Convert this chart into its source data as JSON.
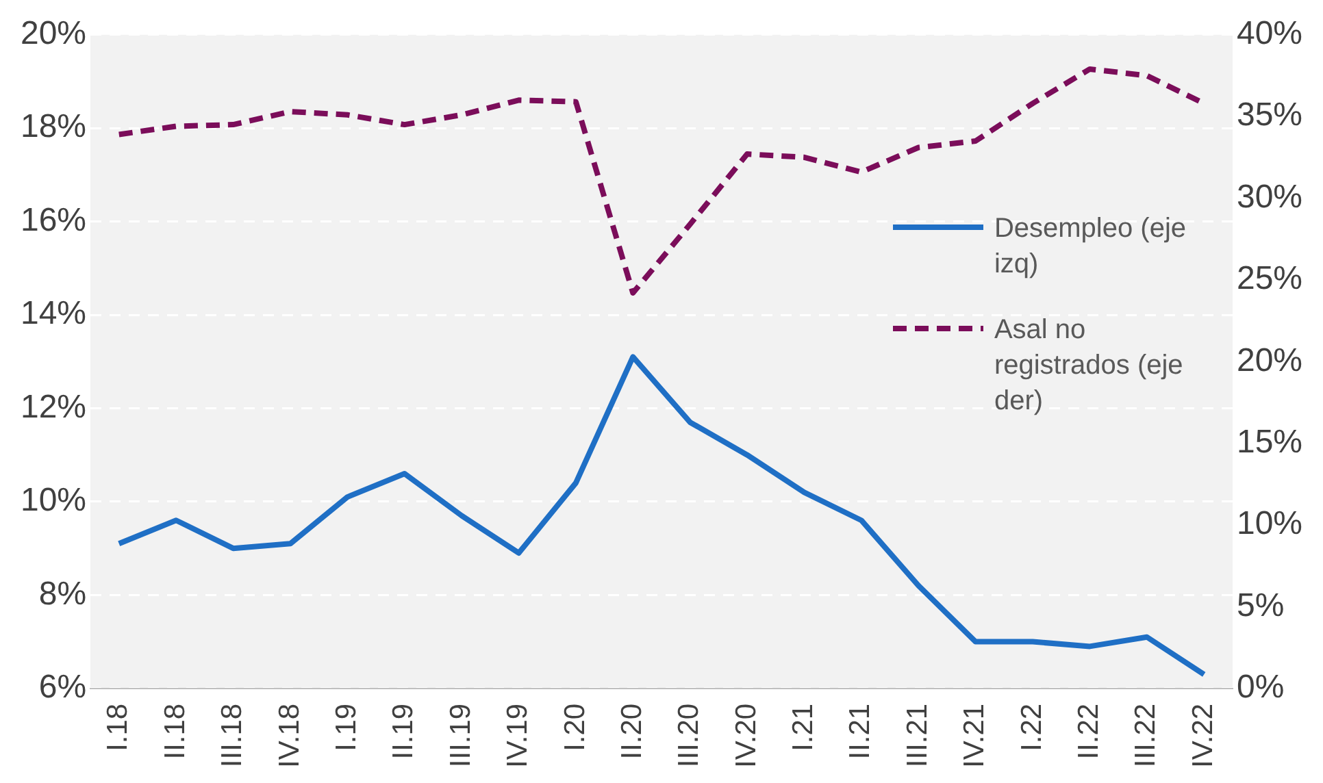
{
  "chart_data": {
    "type": "line",
    "categories": [
      "I.18",
      "II.18",
      "III.18",
      "IV.18",
      "I.19",
      "II.19",
      "III.19",
      "IV.19",
      "I.20",
      "II.20",
      "III.20",
      "IV.20",
      "I.21",
      "II.21",
      "III.21",
      "IV.21",
      "I.22",
      "II.22",
      "III.22",
      "IV.22"
    ],
    "series": [
      {
        "name": "Desempleo (eje izq)",
        "color": "#1f6fc5",
        "line_style": "solid",
        "values": [
          9.1,
          9.6,
          9.0,
          9.1,
          10.1,
          10.6,
          9.7,
          8.9,
          10.4,
          13.1,
          11.7,
          11.0,
          10.2,
          9.6,
          8.2,
          7.0,
          7.0,
          6.9,
          7.1,
          6.3
        ]
      },
      {
        "name": "Asal no registrados (eje der)",
        "color": "#7b0d5a",
        "line_style": "dashed",
        "axis": "y2",
        "values": [
          33.9,
          34.4,
          34.5,
          35.3,
          35.1,
          34.5,
          35.1,
          36.0,
          35.9,
          24.2,
          28.4,
          32.7,
          32.5,
          31.6,
          33.1,
          33.5,
          35.8,
          37.9,
          37.5,
          35.8
        ]
      }
    ],
    "ylim": [
      6,
      20
    ],
    "yticks": [
      {
        "value": 6,
        "label": "6%"
      },
      {
        "value": 8,
        "label": "8%"
      },
      {
        "value": 10,
        "label": "10%"
      },
      {
        "value": 12,
        "label": "12%"
      },
      {
        "value": 14,
        "label": "14%"
      },
      {
        "value": 16,
        "label": "16%"
      },
      {
        "value": 18,
        "label": "18%"
      },
      {
        "value": 20,
        "label": "20%"
      }
    ],
    "y2lim": [
      0,
      40
    ],
    "y2ticks": [
      {
        "value": 0,
        "label": "0%"
      },
      {
        "value": 5,
        "label": "5%"
      },
      {
        "value": 10,
        "label": "10%"
      },
      {
        "value": 15,
        "label": "15%"
      },
      {
        "value": 20,
        "label": "20%"
      },
      {
        "value": 25,
        "label": "25%"
      },
      {
        "value": 30,
        "label": "30%"
      },
      {
        "value": 35,
        "label": "35%"
      },
      {
        "value": 40,
        "label": "40%"
      }
    ],
    "grid": "y",
    "legend": "right",
    "marker": "none"
  }
}
